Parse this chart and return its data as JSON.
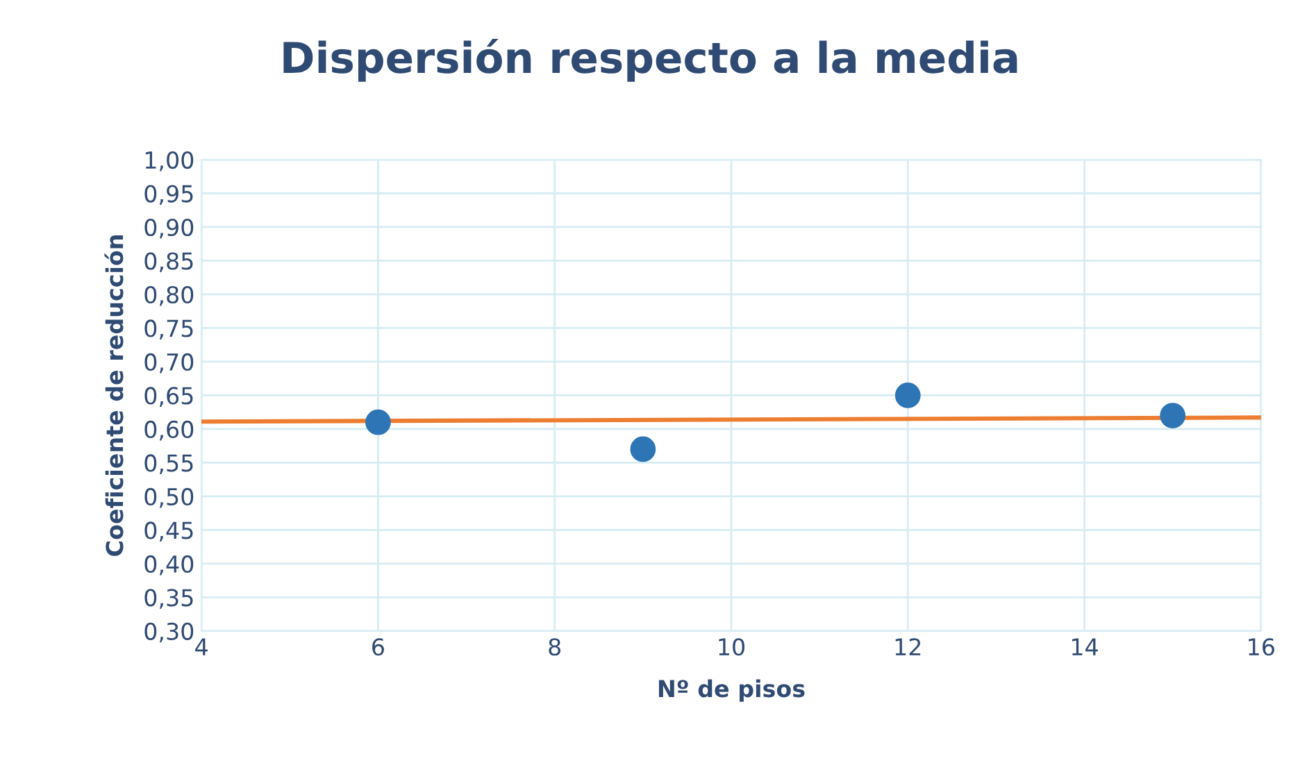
{
  "chart_data": {
    "type": "scatter",
    "title": "Dispersión respecto a la media",
    "xlabel": "Nº de pisos",
    "ylabel": "Coeficiente de reducción",
    "series": [
      {
        "color": "#2e75b6",
        "marker": "circle",
        "x": [
          6,
          9,
          12,
          15
        ],
        "values": [
          0.61,
          0.57,
          0.65,
          0.62
        ]
      },
      {
        "type": "line",
        "color": "#ed7d31",
        "x": [
          4,
          16
        ],
        "values": [
          0.611,
          0.617
        ]
      }
    ],
    "xlim": [
      4,
      16
    ],
    "xticks": [
      4,
      6,
      8,
      10,
      12,
      14,
      16
    ],
    "ylim": [
      0.3,
      1.0
    ],
    "yticks": [
      {
        "value": 0.3,
        "label": "0,30"
      },
      {
        "value": 0.35,
        "label": "0,35"
      },
      {
        "value": 0.4,
        "label": "0,40"
      },
      {
        "value": 0.45,
        "label": "0,45"
      },
      {
        "value": 0.5,
        "label": "0,50"
      },
      {
        "value": 0.55,
        "label": "0,55"
      },
      {
        "value": 0.6,
        "label": "0,60"
      },
      {
        "value": 0.65,
        "label": "0,65"
      },
      {
        "value": 0.7,
        "label": "0,70"
      },
      {
        "value": 0.75,
        "label": "0,75"
      },
      {
        "value": 0.8,
        "label": "0,80"
      },
      {
        "value": 0.85,
        "label": "0,85"
      },
      {
        "value": 0.9,
        "label": "0,90"
      },
      {
        "value": 0.95,
        "label": "0,95"
      },
      {
        "value": 1.0,
        "label": "1,00"
      }
    ],
    "grid": true
  }
}
